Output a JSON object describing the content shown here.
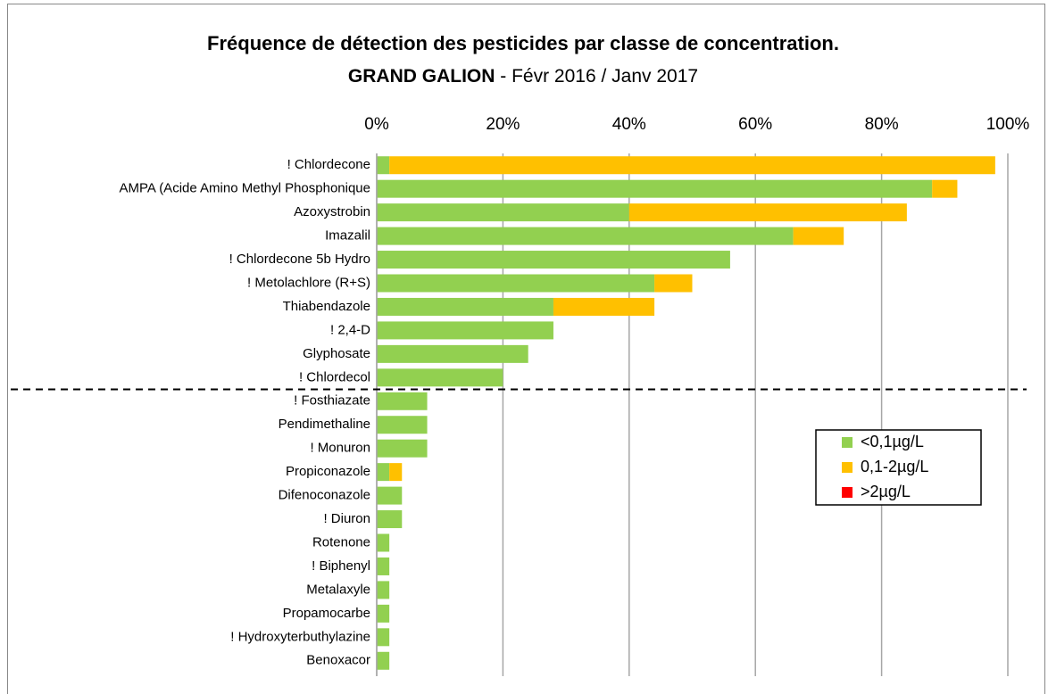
{
  "chart_data": {
    "type": "stacked_barh",
    "title": "Fréquence de détection des pesticides par classe de concentration.",
    "subtitle_bold": "GRAND GALION",
    "subtitle": "- Févr 2016 / Janv 2017",
    "categories": [
      "! Chlordecone",
      "AMPA (Acide Amino Methyl Phosphonique",
      "Azoxystrobin",
      "Imazalil",
      "! Chlordecone 5b Hydro",
      "! Metolachlore (R+S)",
      "Thiabendazole",
      "! 2,4-D",
      "Glyphosate",
      "! Chlordecol",
      "! Fosthiazate",
      "Pendimethaline",
      "! Monuron",
      "Propiconazole",
      "Difenoconazole",
      "! Diuron",
      "Rotenone",
      "! Biphenyl",
      "Metalaxyle",
      "Propamocarbe",
      "! Hydroxyterbuthylazine",
      "Benoxacor"
    ],
    "series": [
      {
        "name": "<0,1µg/L",
        "color": "#92d050",
        "values": [
          2,
          88,
          40,
          66,
          56,
          44,
          28,
          28,
          24,
          20,
          8,
          8,
          8,
          2,
          4,
          4,
          2,
          2,
          2,
          2,
          2,
          2
        ]
      },
      {
        "name": "0,1-2µg/L",
        "color": "#ffc000",
        "values": [
          96,
          4,
          44,
          8,
          0,
          6,
          16,
          0,
          0,
          0,
          0,
          0,
          0,
          2,
          0,
          0,
          0,
          0,
          0,
          0,
          0,
          0
        ]
      },
      {
        "name": ">2µg/L",
        "color": "#ff0000",
        "values": [
          0,
          0,
          0,
          0,
          0,
          0,
          0,
          0,
          0,
          0,
          0,
          0,
          0,
          0,
          0,
          0,
          0,
          0,
          0,
          0,
          0,
          0
        ]
      }
    ],
    "xlim": [
      0,
      100
    ],
    "xticks": [
      {
        "value": 0,
        "label": "0%"
      },
      {
        "value": 20,
        "label": "20%"
      },
      {
        "value": 40,
        "label": "40%"
      },
      {
        "value": 60,
        "label": "60%"
      },
      {
        "value": 80,
        "label": "80%"
      },
      {
        "value": 100,
        "label": "100%"
      }
    ],
    "grid": true,
    "legend": "right"
  }
}
